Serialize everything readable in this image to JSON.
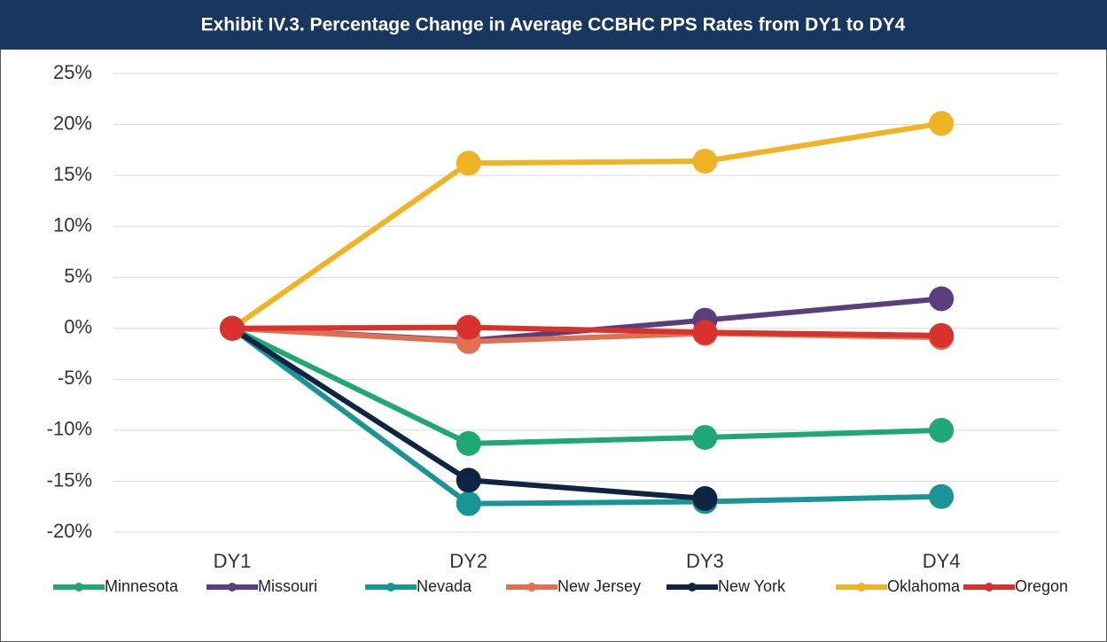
{
  "chart_data": {
    "type": "line",
    "title": "Exhibit IV.3. Percentage Change in Average CCBHC PPS Rates from DY1 to DY4",
    "categories": [
      "DY1",
      "DY2",
      "DY3",
      "DY4"
    ],
    "series": [
      {
        "name": "Minnesota",
        "color": "#1fa774",
        "values": [
          0,
          -11.3,
          -10.7,
          -10.0
        ]
      },
      {
        "name": "Missouri",
        "color": "#5b3f7a",
        "values": [
          0,
          -1.2,
          0.8,
          2.9
        ]
      },
      {
        "name": "Nevada",
        "color": "#1a9595",
        "values": [
          0,
          -17.2,
          -17.0,
          -16.5
        ]
      },
      {
        "name": "New Jersey",
        "color": "#e07050",
        "values": [
          0,
          -1.3,
          -0.5,
          -0.9
        ]
      },
      {
        "name": "New York",
        "color": "#0d2442",
        "values": [
          0,
          -14.9,
          -16.7,
          null
        ]
      },
      {
        "name": "Oklahoma",
        "color": "#f0b323",
        "values": [
          0,
          16.2,
          16.4,
          20.1
        ]
      },
      {
        "name": "Oregon",
        "color": "#d9312b",
        "values": [
          0,
          0.1,
          -0.4,
          -0.7
        ]
      }
    ],
    "ylim": [
      -20,
      25
    ],
    "yticks": [
      {
        "value": -20,
        "label": "-20%"
      },
      {
        "value": -15,
        "label": "-15%"
      },
      {
        "value": -10,
        "label": "-10%"
      },
      {
        "value": -5,
        "label": "-5%"
      },
      {
        "value": 0,
        "label": "0%"
      },
      {
        "value": 5,
        "label": "5%"
      },
      {
        "value": 10,
        "label": "10%"
      },
      {
        "value": 15,
        "label": "15%"
      },
      {
        "value": 20,
        "label": "20%"
      },
      {
        "value": 25,
        "label": "25%"
      }
    ],
    "grid": true,
    "legend": "bottom"
  }
}
